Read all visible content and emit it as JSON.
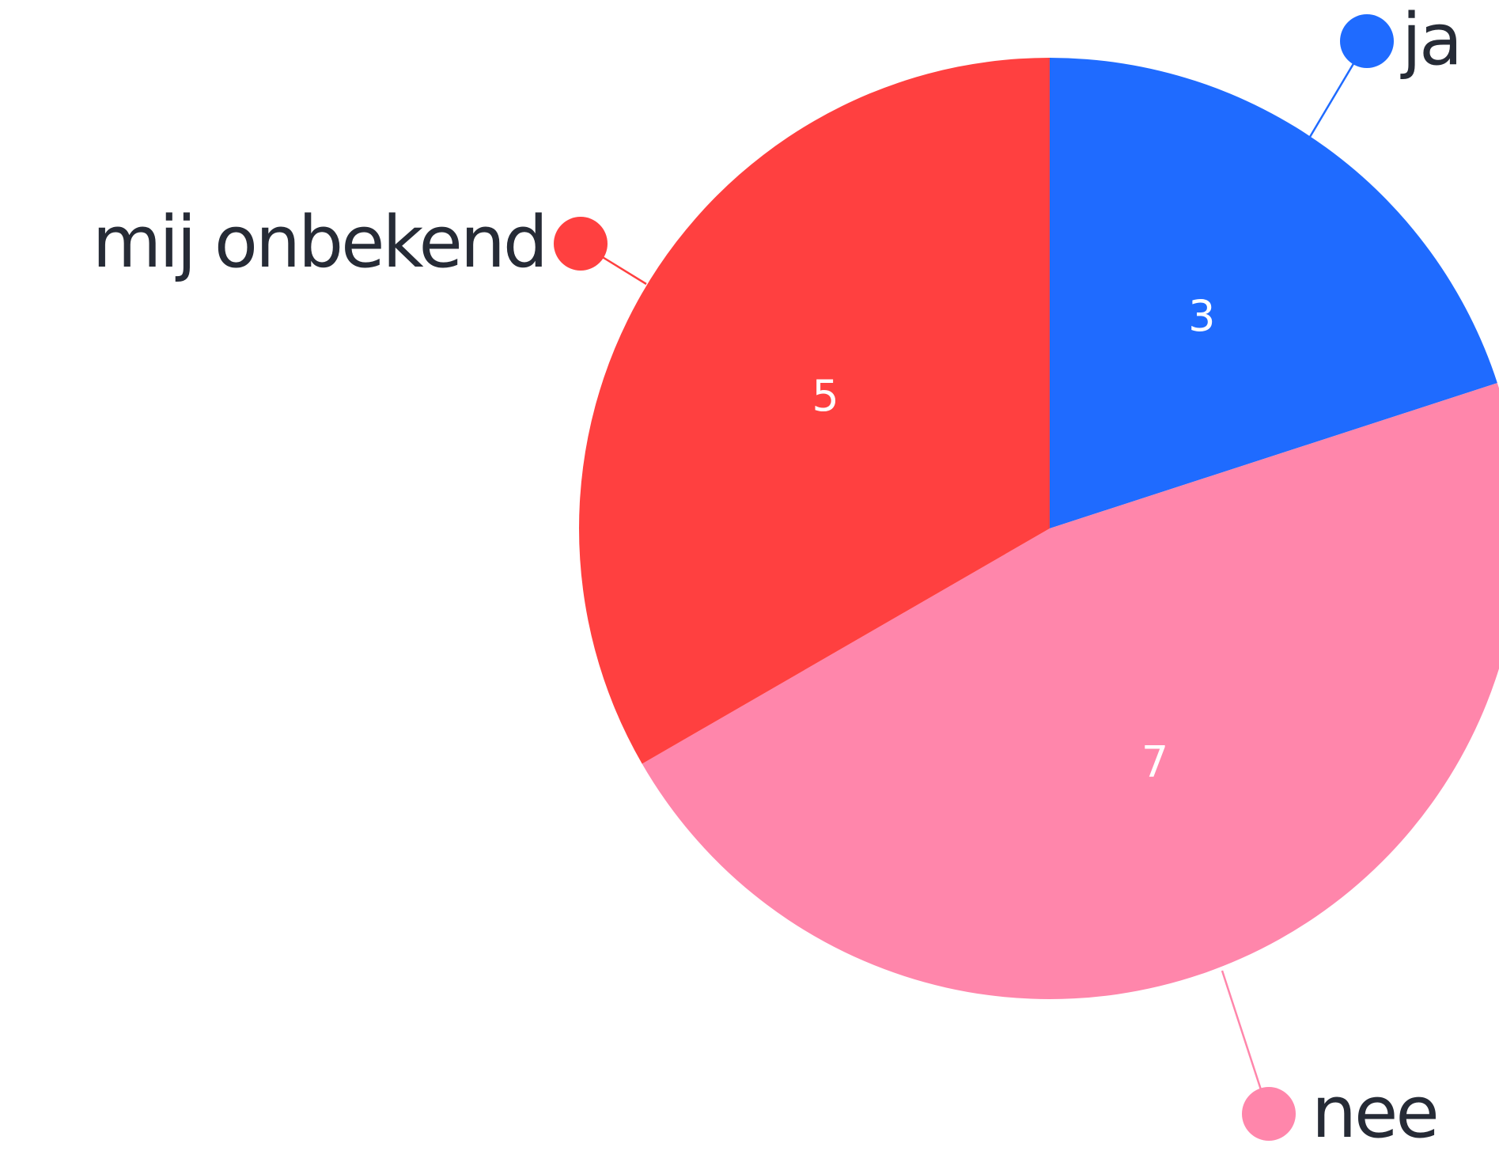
{
  "chart_data": {
    "type": "pie",
    "categories": [
      "ja",
      "nee",
      "mij onbekend"
    ],
    "values": [
      3,
      7,
      5
    ],
    "colors": [
      "#1f6bff",
      "#ff86ab",
      "#ff4040"
    ]
  }
}
